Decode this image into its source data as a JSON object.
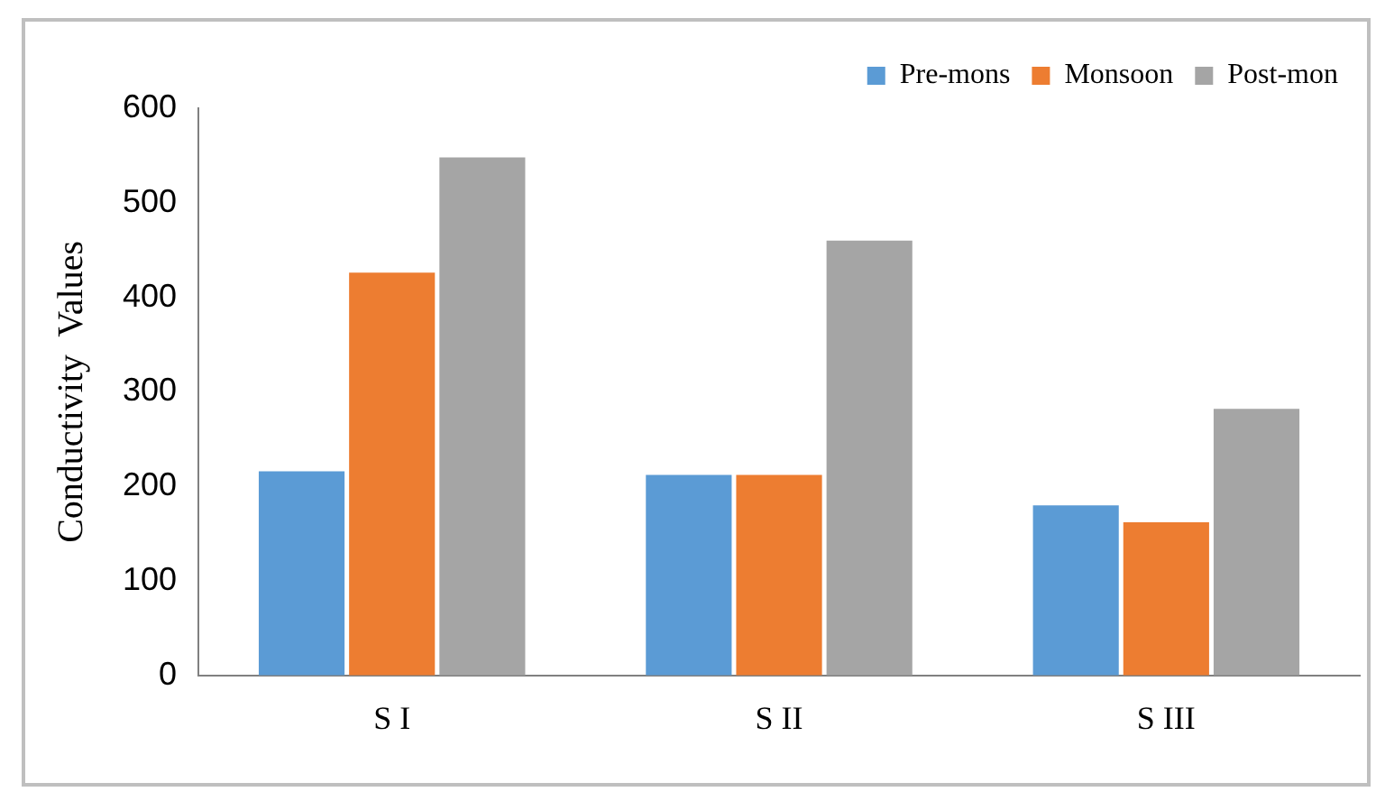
{
  "chart_data": {
    "type": "bar",
    "ylabel": "Conductivity  Values",
    "categories": [
      "S I",
      "S II",
      "S III"
    ],
    "series": [
      {
        "name": "Pre-mons",
        "color": "#5b9bd5",
        "values": [
          216,
          212,
          180
        ]
      },
      {
        "name": "Monsoon",
        "color": "#ed7d31",
        "values": [
          426,
          212,
          162
        ]
      },
      {
        "name": "Post-mon",
        "color": "#a5a5a5",
        "values": [
          548,
          460,
          282
        ]
      }
    ],
    "ylim": [
      0,
      600
    ],
    "yticks": [
      0,
      100,
      200,
      300,
      400,
      500,
      600
    ],
    "grid": false,
    "legend": "top right"
  }
}
